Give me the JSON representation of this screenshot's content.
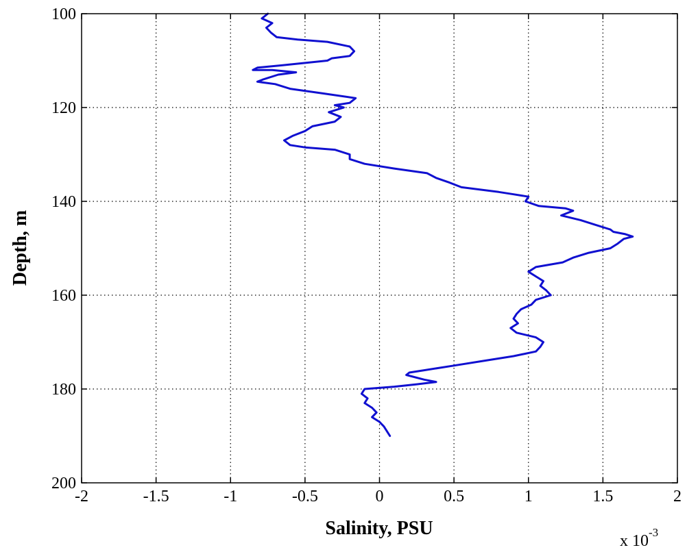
{
  "chart_data": {
    "type": "line",
    "title": "",
    "xlabel": "Salinity, PSU",
    "ylabel": "Depth, m",
    "x_multiplier_label": "x 10",
    "x_multiplier_exponent": "-3",
    "xlim": [
      -2,
      2
    ],
    "ylim": [
      100,
      200
    ],
    "y_reversed": true,
    "grid": true,
    "grid_style": "dotted",
    "x_ticks": [
      -2,
      -1.5,
      -1,
      -0.5,
      0,
      0.5,
      1,
      1.5,
      2
    ],
    "x_tick_labels": [
      "-2",
      "-1.5",
      "-1",
      "-0.5",
      "0",
      "0.5",
      "1",
      "1.5",
      "2"
    ],
    "y_ticks": [
      100,
      120,
      140,
      160,
      180,
      200
    ],
    "y_tick_labels": [
      "100",
      "120",
      "140",
      "160",
      "180",
      "200"
    ],
    "series": [
      {
        "color": "#1010d0",
        "x": [
          -0.75,
          -0.79,
          -0.72,
          -0.76,
          -0.73,
          -0.69,
          -0.55,
          -0.35,
          -0.2,
          -0.17,
          -0.2,
          -0.32,
          -0.35,
          -0.5,
          -0.65,
          -0.82,
          -0.85,
          -0.72,
          -0.56,
          -0.68,
          -0.78,
          -0.82,
          -0.7,
          -0.6,
          -0.38,
          -0.16,
          -0.2,
          -0.3,
          -0.24,
          -0.34,
          -0.26,
          -0.3,
          -0.45,
          -0.5,
          -0.58,
          -0.64,
          -0.6,
          -0.5,
          -0.3,
          -0.2,
          -0.2,
          -0.1,
          0.1,
          0.32,
          0.38,
          0.47,
          0.55,
          0.8,
          0.9,
          1.0,
          0.98,
          1.07,
          1.25,
          1.3,
          1.22,
          1.35,
          1.45,
          1.55,
          1.57,
          1.65,
          1.7,
          1.64,
          1.6,
          1.55,
          1.4,
          1.3,
          1.23,
          1.05,
          1.0,
          1.05,
          1.1,
          1.08,
          1.12,
          1.15,
          1.05,
          1.02,
          0.95,
          0.92,
          0.9,
          0.93,
          0.88,
          0.92,
          1.05,
          1.1,
          1.08,
          1.05,
          0.9,
          0.7,
          0.5,
          0.3,
          0.2,
          0.18,
          0.3,
          0.38,
          0.25,
          0.1,
          -0.1,
          -0.12,
          -0.08,
          -0.1,
          -0.05,
          -0.02,
          -0.05,
          0.0,
          0.03,
          0.07
        ],
        "y": [
          100,
          101,
          102,
          103,
          104,
          105,
          105.5,
          106,
          107,
          108,
          109,
          109.5,
          110,
          110.5,
          111,
          111.5,
          112,
          112,
          112.5,
          113,
          114,
          114.5,
          115,
          116,
          117,
          118,
          119,
          119.5,
          120,
          121,
          122,
          123,
          124,
          125,
          126,
          127,
          128,
          128.5,
          129,
          130,
          131,
          132,
          133,
          134,
          135,
          136,
          137,
          138,
          138.5,
          139,
          140,
          141,
          141.5,
          142,
          143,
          144,
          145,
          146,
          146.5,
          147,
          147.5,
          148,
          149,
          150,
          151,
          152,
          153,
          154,
          155,
          156,
          157,
          158,
          159,
          160,
          161,
          162,
          163,
          164,
          165,
          166,
          167,
          168,
          169,
          170,
          171,
          172,
          173,
          174,
          175,
          176,
          176.5,
          177,
          178,
          178.5,
          179,
          179.5,
          180,
          181,
          182,
          183,
          184,
          185,
          186,
          187,
          188,
          190
        ]
      }
    ]
  }
}
